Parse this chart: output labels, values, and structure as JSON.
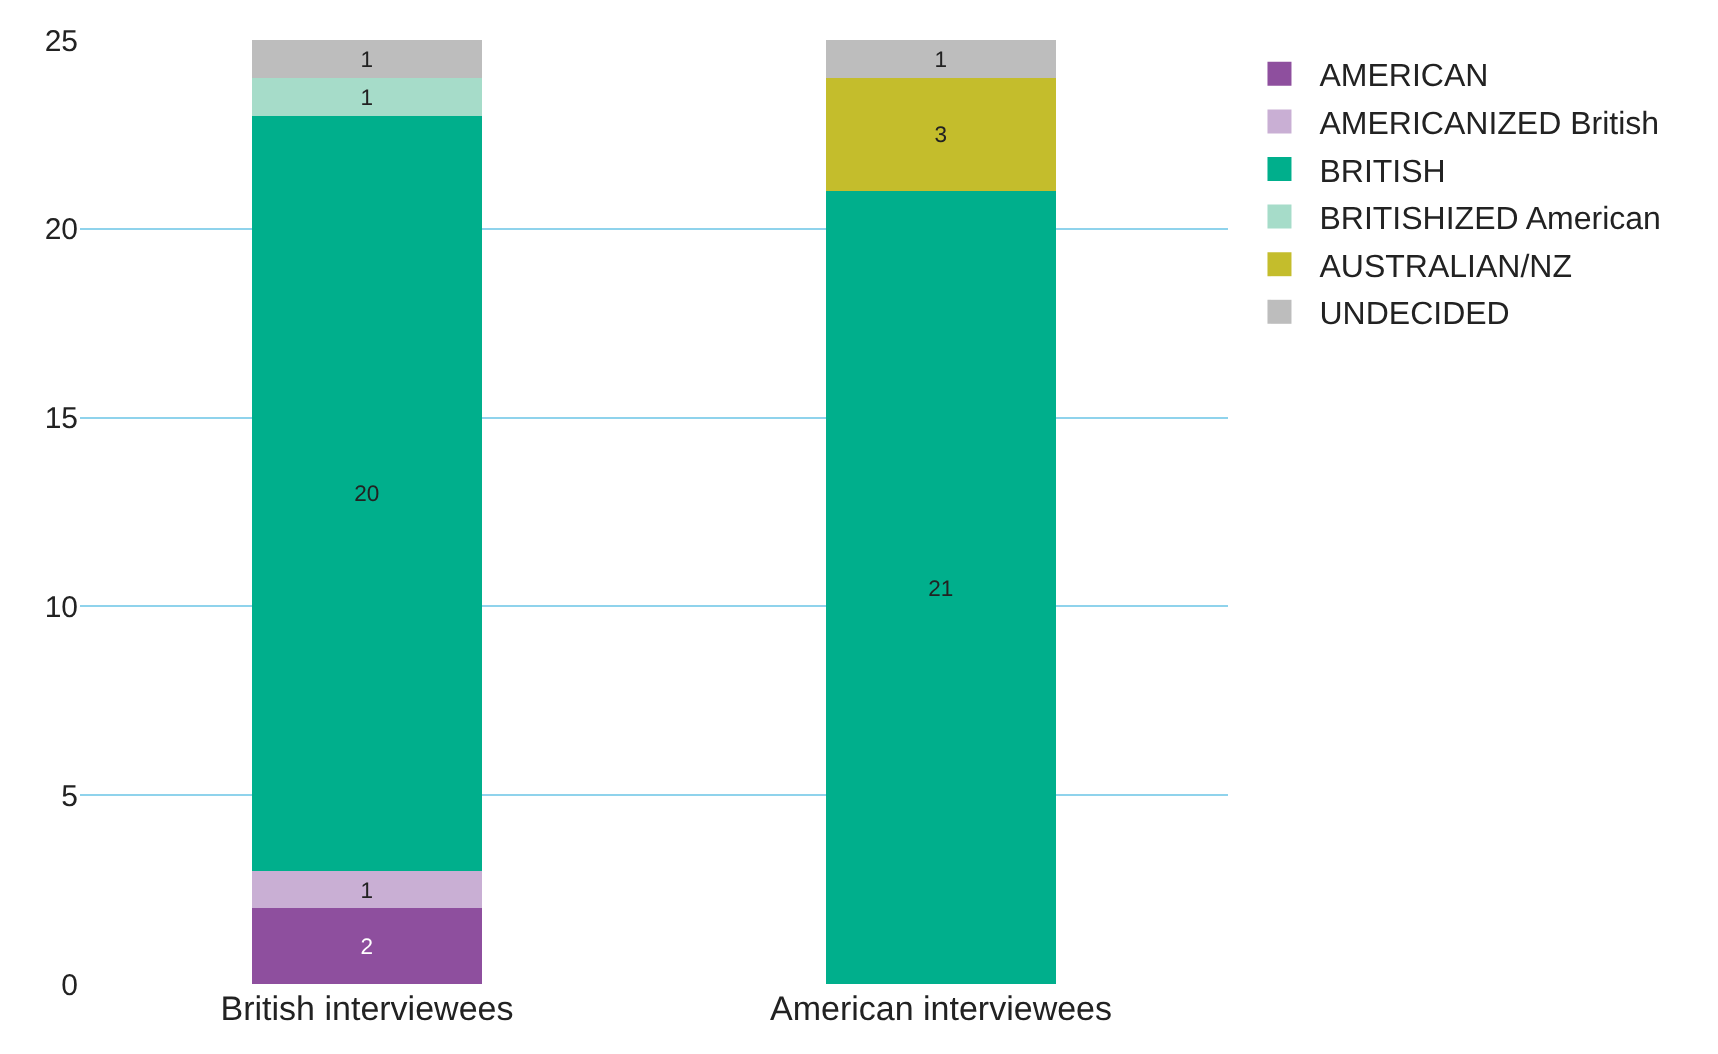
{
  "chart_data": {
    "type": "bar",
    "stacked": true,
    "data_labels": true,
    "categories": [
      "British interviewees",
      "American interviewees"
    ],
    "series": [
      {
        "name": "AMERICAN",
        "color": "#8e4f9e",
        "values": [
          2,
          null
        ]
      },
      {
        "name": "AMERICANIZED British",
        "color": "#c9afd4",
        "values": [
          1,
          null
        ]
      },
      {
        "name": "BRITISH",
        "color": "#00af8c",
        "values": [
          20,
          21
        ]
      },
      {
        "name": "BRITISHIZED American",
        "color": "#a6dcc9",
        "values": [
          1,
          null
        ]
      },
      {
        "name": "AUSTRALIAN/NZ",
        "color": "#c4bd2c",
        "values": [
          null,
          3
        ]
      },
      {
        "name": "UNDECIDED",
        "color": "#bdbdbd",
        "values": [
          1,
          1
        ]
      }
    ],
    "ylim": [
      0,
      25
    ],
    "yticks": [
      0,
      5,
      10,
      15,
      20,
      25
    ],
    "grid": "y",
    "legend": "top right"
  }
}
